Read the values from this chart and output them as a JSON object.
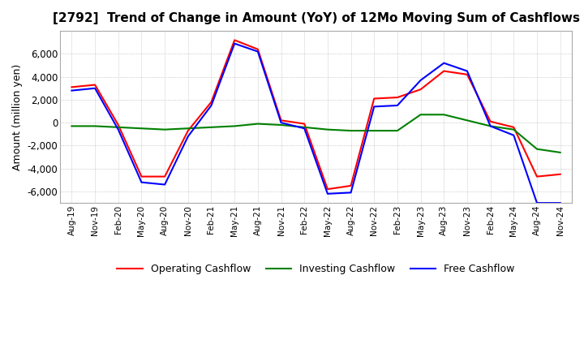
{
  "title": "[2792]  Trend of Change in Amount (YoY) of 12Mo Moving Sum of Cashflows",
  "ylabel": "Amount (million yen)",
  "ylim": [
    -7000,
    8000
  ],
  "yticks": [
    -6000,
    -4000,
    -2000,
    0,
    2000,
    4000,
    6000
  ],
  "background_color": "#ffffff",
  "grid_color": "#aaaaaa",
  "x_labels": [
    "Aug-19",
    "Nov-19",
    "Feb-20",
    "May-20",
    "Aug-20",
    "Nov-20",
    "Feb-21",
    "May-21",
    "Aug-21",
    "Nov-21",
    "Feb-22",
    "May-22",
    "Aug-22",
    "Nov-22",
    "Feb-23",
    "May-23",
    "Aug-23",
    "Nov-23",
    "Feb-24",
    "May-24",
    "Aug-24",
    "Nov-24"
  ],
  "operating": [
    3100,
    3300,
    -200,
    -4700,
    -4700,
    -700,
    1800,
    7200,
    6400,
    200,
    -100,
    -5800,
    -5500,
    2100,
    2200,
    2900,
    4500,
    4200,
    100,
    -400,
    -4700,
    -4500
  ],
  "investing": [
    -300,
    -300,
    -400,
    -500,
    -600,
    -500,
    -400,
    -300,
    -100,
    -200,
    -400,
    -600,
    -700,
    -700,
    -700,
    700,
    700,
    200,
    -300,
    -600,
    -2300,
    -2600
  ],
  "free": [
    2800,
    3000,
    -600,
    -5200,
    -5400,
    -1200,
    1500,
    6900,
    6200,
    0,
    -500,
    -6200,
    -6100,
    1400,
    1500,
    3700,
    5200,
    4500,
    -300,
    -1100,
    -7000,
    -7000
  ],
  "op_color": "#ff0000",
  "inv_color": "#008000",
  "free_color": "#0000ff",
  "legend_labels": [
    "Operating Cashflow",
    "Investing Cashflow",
    "Free Cashflow"
  ]
}
